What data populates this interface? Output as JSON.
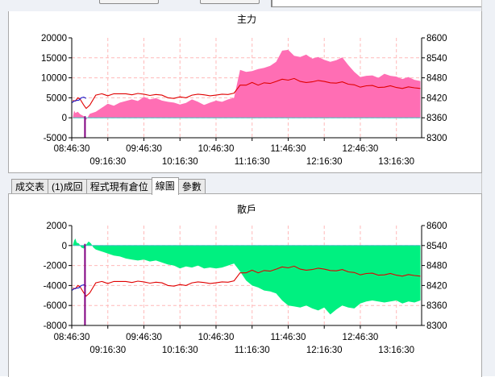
{
  "tabs": [
    {
      "label": "成交表",
      "active": false
    },
    {
      "label": "(1)成回",
      "active": false
    },
    {
      "label": "程式現有倉位",
      "active": false
    },
    {
      "label": "線圖",
      "active": true
    },
    {
      "label": "參數",
      "active": false
    }
  ],
  "colors": {
    "main_area": "#ff6eb4",
    "retail_area": "#00f080",
    "price_line": "#e00000",
    "premarket_line": "#1a1acc",
    "marker": "#800080",
    "grid": "#ffb9b9"
  },
  "chart_data": [
    {
      "type": "area",
      "title": "主力",
      "x_ticks_top": [
        "08:46:30",
        "09:46:30",
        "10:46:30",
        "11:46:30",
        "12:46:30"
      ],
      "x_ticks_bottom": [
        "09:16:30",
        "10:16:30",
        "11:16:30",
        "12:16:30",
        "13:16:30"
      ],
      "y_left_ticks": [
        "20000",
        "15000",
        "10000",
        "5000",
        "0",
        "-5000"
      ],
      "y_right_ticks": [
        "8600",
        "8540",
        "8480",
        "8420",
        "8360",
        "8300"
      ],
      "ylim_left": [
        -5000,
        20000
      ],
      "ylim_right": [
        8300,
        8600
      ],
      "series": [
        {
          "axis": "left",
          "kind": "area",
          "x": [
            0.9,
            1.5,
            2,
            3,
            5,
            7,
            10,
            12,
            15,
            20,
            25,
            30,
            35,
            40,
            45,
            50,
            55,
            60,
            65,
            70,
            75,
            80,
            85,
            90,
            95,
            100,
            105,
            110,
            115,
            120,
            125,
            130,
            135,
            140,
            145,
            150,
            155,
            160,
            165,
            170,
            175,
            180,
            185,
            190,
            195,
            200,
            205,
            210,
            215,
            220,
            225,
            230,
            235,
            240,
            245,
            250,
            255,
            260,
            265,
            270,
            275,
            280,
            285,
            290
          ],
          "y": [
            0,
            1000,
            1800,
            1200,
            1500,
            900,
            400,
            -500,
            1000,
            1500,
            2500,
            3500,
            3000,
            3800,
            4200,
            4600,
            4200,
            5200,
            4600,
            4900,
            4300,
            4000,
            3800,
            3300,
            3700,
            4600,
            4000,
            3200,
            3800,
            4300,
            4000,
            4600,
            5000,
            12000,
            11500,
            11700,
            12200,
            12500,
            13000,
            14000,
            16800,
            17000,
            15500,
            15200,
            15800,
            14800,
            15200,
            14500,
            14000,
            14400,
            15100,
            13200,
            11500,
            10200,
            10500,
            10600,
            10000,
            11000,
            10500,
            10300,
            9700,
            10200,
            9500,
            9200
          ]
        },
        {
          "axis": "right",
          "kind": "line",
          "name": "",
          "x": [
            0.9,
            3,
            5,
            7,
            10,
            12,
            15,
            20,
            25,
            30,
            35,
            40,
            45,
            50,
            55,
            60,
            65,
            70,
            75,
            80,
            85,
            90,
            95,
            100,
            105,
            110,
            115,
            120,
            125,
            130,
            135,
            140,
            145,
            150,
            155,
            160,
            165,
            170,
            175,
            180,
            185,
            190,
            195,
            200,
            205,
            210,
            215,
            220,
            225,
            230,
            235,
            240,
            245,
            250,
            255,
            260,
            265,
            270,
            275,
            280,
            285,
            290
          ],
          "y": [
            8412,
            8410,
            8420,
            8416,
            8398,
            8388,
            8398,
            8428,
            8432,
            8426,
            8432,
            8432,
            8432,
            8429,
            8433,
            8431,
            8427,
            8430,
            8428,
            8420,
            8418,
            8423,
            8420,
            8428,
            8431,
            8429,
            8426,
            8428,
            8431,
            8430,
            8434,
            8458,
            8458,
            8466,
            8458,
            8465,
            8463,
            8469,
            8476,
            8473,
            8478,
            8469,
            8466,
            8468,
            8472,
            8469,
            8465,
            8464,
            8468,
            8461,
            8459,
            8452,
            8456,
            8457,
            8451,
            8452,
            8456,
            8451,
            8448,
            8453,
            8450,
            8448
          ]
        },
        {
          "axis": "right",
          "kind": "line",
          "name": "",
          "x": [
            0,
            2,
            4,
            6,
            8,
            10,
            12
          ],
          "y": [
            8405,
            8410,
            8412,
            8413,
            8420,
            8422,
            8418
          ]
        }
      ],
      "marker_x": 11
    },
    {
      "type": "area",
      "title": "散戶",
      "x_ticks_top": [
        "08:46:30",
        "09:46:30",
        "10:46:30",
        "11:46:30",
        "12:46:30"
      ],
      "x_ticks_bottom": [
        "09:16:30",
        "10:16:30",
        "11:16:30",
        "12:16:30",
        "13:16:30"
      ],
      "y_left_ticks": [
        "2000",
        "0",
        "-2000",
        "-4000",
        "-6000",
        "-8000"
      ],
      "y_right_ticks": [
        "8600",
        "8540",
        "8480",
        "8420",
        "8360",
        "8300"
      ],
      "ylim_left": [
        -8000,
        2000
      ],
      "ylim_right": [
        8300,
        8600
      ],
      "series": [
        {
          "axis": "left",
          "kind": "area",
          "x": [
            0.9,
            2,
            3,
            4,
            6,
            8,
            10,
            12,
            14,
            16,
            18,
            20,
            25,
            30,
            35,
            40,
            45,
            50,
            55,
            60,
            65,
            70,
            75,
            80,
            85,
            90,
            95,
            100,
            105,
            110,
            115,
            120,
            125,
            130,
            135,
            140,
            145,
            150,
            155,
            160,
            165,
            170,
            175,
            180,
            185,
            190,
            195,
            200,
            205,
            210,
            215,
            220,
            225,
            230,
            235,
            240,
            245,
            250,
            255,
            260,
            265,
            270,
            275,
            280,
            285,
            290
          ],
          "y": [
            0,
            500,
            700,
            300,
            200,
            -200,
            -300,
            100,
            400,
            200,
            -200,
            -400,
            -600,
            -800,
            -1000,
            -1100,
            -1300,
            -1400,
            -1500,
            -1400,
            -1600,
            -1500,
            -1700,
            -1900,
            -2000,
            -2300,
            -2100,
            -2200,
            -2000,
            -2300,
            -2200,
            -2300,
            -2200,
            -2000,
            -1800,
            -2600,
            -3500,
            -4000,
            -4200,
            -4500,
            -4600,
            -4800,
            -5500,
            -6000,
            -6100,
            -6200,
            -6000,
            -6300,
            -6500,
            -6200,
            -6900,
            -6400,
            -6000,
            -6200,
            -6300,
            -5800,
            -5600,
            -5500,
            -5600,
            -5700,
            -5600,
            -5500,
            -5800,
            -5600,
            -5700,
            -5500
          ]
        },
        {
          "axis": "right",
          "kind": "line",
          "name": "",
          "x": [
            0.9,
            3,
            5,
            7,
            10,
            12,
            15,
            20,
            25,
            30,
            35,
            40,
            45,
            50,
            55,
            60,
            65,
            70,
            75,
            80,
            85,
            90,
            95,
            100,
            105,
            110,
            115,
            120,
            125,
            130,
            135,
            140,
            145,
            150,
            155,
            160,
            165,
            170,
            175,
            180,
            185,
            190,
            195,
            200,
            205,
            210,
            215,
            220,
            225,
            230,
            235,
            240,
            245,
            250,
            255,
            260,
            265,
            270,
            275,
            280,
            285,
            290
          ],
          "y": [
            8412,
            8410,
            8420,
            8416,
            8398,
            8388,
            8398,
            8428,
            8432,
            8426,
            8432,
            8432,
            8432,
            8429,
            8433,
            8431,
            8427,
            8430,
            8428,
            8420,
            8418,
            8423,
            8420,
            8428,
            8431,
            8429,
            8426,
            8428,
            8431,
            8430,
            8434,
            8458,
            8458,
            8466,
            8458,
            8465,
            8463,
            8469,
            8476,
            8473,
            8478,
            8469,
            8466,
            8468,
            8472,
            8469,
            8465,
            8464,
            8468,
            8461,
            8459,
            8452,
            8456,
            8457,
            8451,
            8452,
            8456,
            8451,
            8448,
            8453,
            8450,
            8448
          ]
        },
        {
          "axis": "right",
          "kind": "line",
          "name": "",
          "x": [
            0,
            2,
            4,
            6,
            8,
            10,
            12
          ],
          "y": [
            8405,
            8410,
            8412,
            8413,
            8420,
            8422,
            8418
          ]
        }
      ],
      "marker_x": 11
    }
  ]
}
